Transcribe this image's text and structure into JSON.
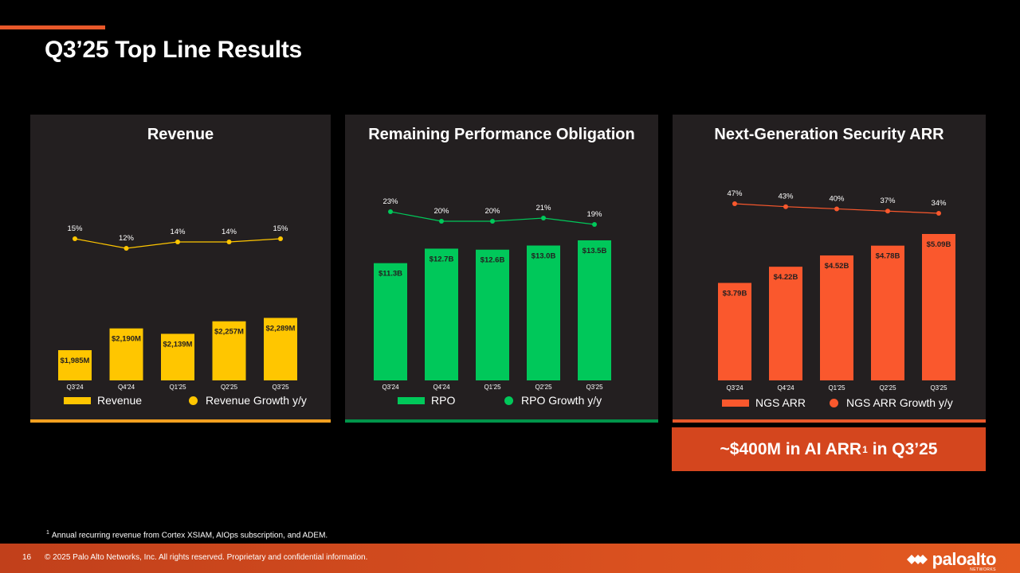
{
  "slide": {
    "title": "Q3’25 Top Line Results",
    "page_number": "16",
    "copyright": "© 2025 Palo Alto Networks, Inc. All rights reserved. Proprietary and confidential information.",
    "footnote_marker": "1",
    "footnote": "Annual recurring revenue from Cortex XSIAM, AIOps subscription, and ADEM.",
    "callout_prefix": "~$400M in AI ARR",
    "callout_sup": "1",
    "callout_suffix": "in Q3’25",
    "logo_text": "paloalto",
    "logo_sub": "NETWORKS"
  },
  "chart_data": [
    {
      "type": "bar",
      "title": "Revenue",
      "categories": [
        "Q3'24",
        "Q4'24",
        "Q1'25",
        "Q2'25",
        "Q3'25"
      ],
      "bar_color": "#ffc600",
      "line_color": "#ffc600",
      "bottom_color": "#f2a020",
      "series": [
        {
          "name": "Revenue",
          "kind": "bar",
          "values": [
            1985,
            2190,
            2139,
            2257,
            2289
          ],
          "labels": [
            "$1,985M",
            "$2,190M",
            "$2,139M",
            "$2,257M",
            "$2,289M"
          ]
        },
        {
          "name": "Revenue Growth y/y",
          "kind": "line",
          "values": [
            15,
            12,
            14,
            14,
            15
          ],
          "labels": [
            "15%",
            "12%",
            "14%",
            "14%",
            "15%"
          ]
        }
      ]
    },
    {
      "type": "bar",
      "title": "Remaining Performance Obligation",
      "categories": [
        "Q3'24",
        "Q4'24",
        "Q1'25",
        "Q2'25",
        "Q3'25"
      ],
      "bar_color": "#00c85a",
      "line_color": "#00c85a",
      "bottom_color": "#00944a",
      "series": [
        {
          "name": "RPO",
          "kind": "bar",
          "values": [
            11.3,
            12.7,
            12.6,
            13.0,
            13.5
          ],
          "labels": [
            "$11.3B",
            "$12.7B",
            "$12.6B",
            "$13.0B",
            "$13.5B"
          ]
        },
        {
          "name": "RPO Growth y/y",
          "kind": "line",
          "values": [
            23,
            20,
            20,
            21,
            19
          ],
          "labels": [
            "23%",
            "20%",
            "20%",
            "21%",
            "19%"
          ]
        }
      ]
    },
    {
      "type": "bar",
      "title": "Next-Generation Security ARR",
      "categories": [
        "Q3'24",
        "Q4'24",
        "Q1'25",
        "Q2'25",
        "Q3'25"
      ],
      "bar_color": "#fa582d",
      "line_color": "#fa582d",
      "bottom_color": "#e8582a",
      "series": [
        {
          "name": "NGS ARR",
          "kind": "bar",
          "values": [
            3.79,
            4.22,
            4.52,
            4.78,
            5.09
          ],
          "labels": [
            "$3.79B",
            "$4.22B",
            "$4.52B",
            "$4.78B",
            "$5.09B"
          ]
        },
        {
          "name": "NGS ARR Growth y/y",
          "kind": "line",
          "values": [
            47,
            43,
            40,
            37,
            34
          ],
          "labels": [
            "47%",
            "43%",
            "40%",
            "37%",
            "34%"
          ]
        }
      ]
    }
  ]
}
